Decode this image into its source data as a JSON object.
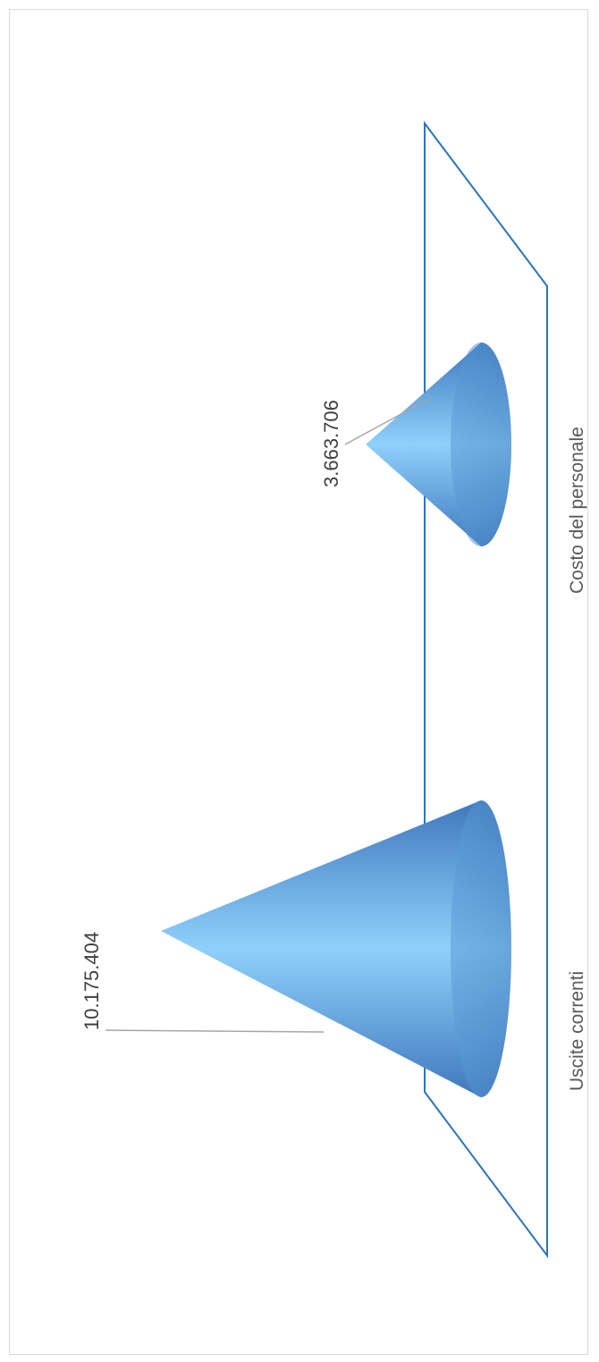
{
  "chart_data": {
    "type": "bar",
    "bar_shape": "cone",
    "orientation": "rotated-3d",
    "categories": [
      "Uscite correnti",
      "Costo del personale"
    ],
    "values": [
      10175404,
      3663706
    ],
    "data_labels": [
      "10.175.404",
      "3.663.706"
    ],
    "title": "",
    "xlabel": "",
    "ylabel": "",
    "colors": {
      "cone": "#5b9bd5",
      "floor": "#2e75b6",
      "leader": "#a6a6a6"
    }
  }
}
